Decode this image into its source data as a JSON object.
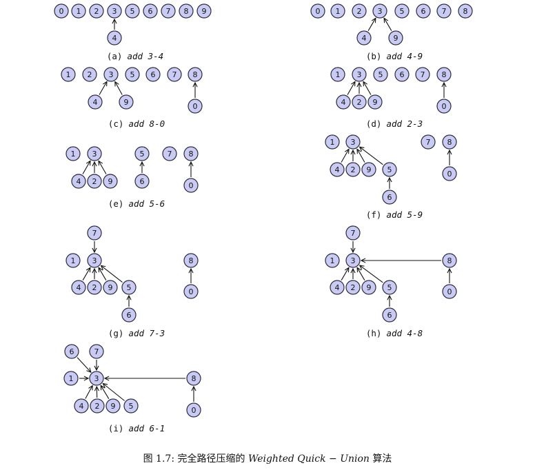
{
  "figure_caption": {
    "prefix": "图 1.7:",
    "text": "完全路径压缩的",
    "algo": "Weighted Quick − Union",
    "suffix": "算法"
  },
  "panels": [
    {
      "id": "a",
      "label": "(a)",
      "op": "add 3-4",
      "nodes": [
        "0",
        "1",
        "2",
        "3",
        "5",
        "6",
        "7",
        "8",
        "9",
        "4"
      ],
      "edges": [
        [
          "4",
          "3"
        ]
      ]
    },
    {
      "id": "b",
      "label": "(b)",
      "op": "add 4-9",
      "nodes": [
        "0",
        "1",
        "2",
        "3",
        "5",
        "6",
        "7",
        "8",
        "4",
        "9"
      ],
      "edges": [
        [
          "4",
          "3"
        ],
        [
          "9",
          "3"
        ]
      ]
    },
    {
      "id": "c",
      "label": "(c)",
      "op": "add 8-0",
      "nodes": [
        "1",
        "2",
        "3",
        "5",
        "6",
        "7",
        "8",
        "4",
        "9",
        "0"
      ],
      "edges": [
        [
          "4",
          "3"
        ],
        [
          "9",
          "3"
        ],
        [
          "0",
          "8"
        ]
      ]
    },
    {
      "id": "d",
      "label": "(d)",
      "op": "add 2-3",
      "nodes": [
        "1",
        "3",
        "5",
        "6",
        "7",
        "8",
        "4",
        "2",
        "9",
        "0"
      ],
      "edges": [
        [
          "4",
          "3"
        ],
        [
          "2",
          "3"
        ],
        [
          "9",
          "3"
        ],
        [
          "0",
          "8"
        ]
      ]
    },
    {
      "id": "e",
      "label": "(e)",
      "op": "add 5-6",
      "nodes": [
        "1",
        "3",
        "5",
        "7",
        "8",
        "4",
        "2",
        "9",
        "6",
        "0"
      ],
      "edges": [
        [
          "4",
          "3"
        ],
        [
          "2",
          "3"
        ],
        [
          "9",
          "3"
        ],
        [
          "6",
          "5"
        ],
        [
          "0",
          "8"
        ]
      ]
    },
    {
      "id": "f",
      "label": "(f)",
      "op": "add 5-9",
      "nodes": [
        "1",
        "3",
        "7",
        "8",
        "4",
        "2",
        "9",
        "5",
        "0",
        "6"
      ],
      "edges": [
        [
          "4",
          "3"
        ],
        [
          "2",
          "3"
        ],
        [
          "9",
          "3"
        ],
        [
          "5",
          "3"
        ],
        [
          "6",
          "5"
        ],
        [
          "0",
          "8"
        ]
      ]
    },
    {
      "id": "g",
      "label": "(g)",
      "op": "add 7-3",
      "nodes": [
        "7",
        "1",
        "3",
        "8",
        "4",
        "2",
        "9",
        "5",
        "0",
        "6"
      ],
      "edges": [
        [
          "7",
          "3"
        ],
        [
          "4",
          "3"
        ],
        [
          "2",
          "3"
        ],
        [
          "9",
          "3"
        ],
        [
          "5",
          "3"
        ],
        [
          "6",
          "5"
        ],
        [
          "0",
          "8"
        ]
      ]
    },
    {
      "id": "h",
      "label": "(h)",
      "op": "add 4-8",
      "nodes": [
        "7",
        "1",
        "3",
        "8",
        "4",
        "2",
        "9",
        "5",
        "0",
        "6"
      ],
      "edges": [
        [
          "7",
          "3"
        ],
        [
          "4",
          "3"
        ],
        [
          "2",
          "3"
        ],
        [
          "9",
          "3"
        ],
        [
          "5",
          "3"
        ],
        [
          "8",
          "3"
        ],
        [
          "6",
          "5"
        ],
        [
          "0",
          "8"
        ]
      ]
    },
    {
      "id": "i",
      "label": "(i)",
      "op": "add 6-1",
      "nodes": [
        "6",
        "7",
        "1",
        "3",
        "8",
        "4",
        "2",
        "9",
        "5",
        "0"
      ],
      "edges": [
        [
          "6",
          "3"
        ],
        [
          "7",
          "3"
        ],
        [
          "1",
          "3"
        ],
        [
          "4",
          "3"
        ],
        [
          "2",
          "3"
        ],
        [
          "9",
          "3"
        ],
        [
          "5",
          "3"
        ],
        [
          "8",
          "3"
        ],
        [
          "0",
          "8"
        ]
      ]
    }
  ]
}
